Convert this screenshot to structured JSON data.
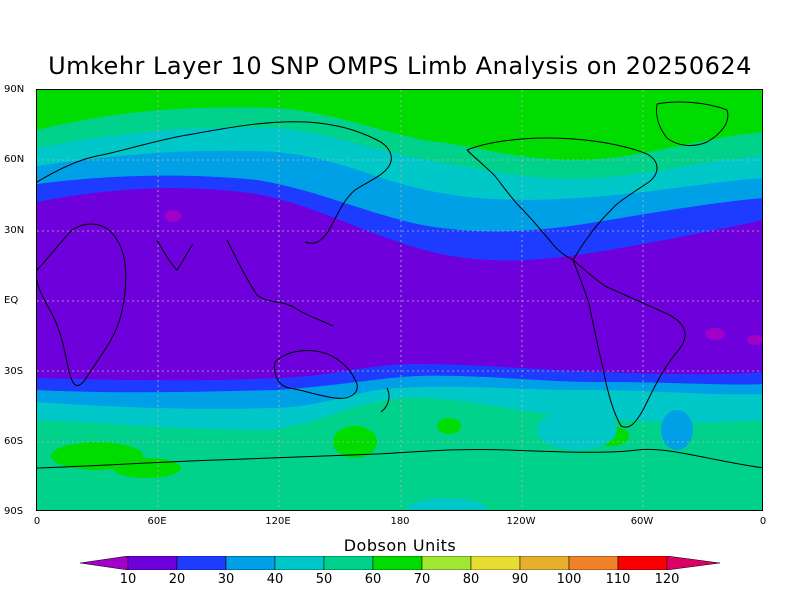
{
  "title": "Umkehr Layer 10 SNP OMPS Limb Analysis on 20250624",
  "lat_labels": [
    "90N",
    "60N",
    "30N",
    "EQ",
    "30S",
    "60S",
    "90S"
  ],
  "lon_labels": [
    "0",
    "60E",
    "120E",
    "180",
    "120W",
    "60W",
    "0"
  ],
  "colorbar": {
    "title": "Dobson Units",
    "ticks": [
      "10",
      "20",
      "30",
      "40",
      "50",
      "60",
      "70",
      "80",
      "90",
      "100",
      "110",
      "120"
    ],
    "colors": [
      "#a000c8",
      "#6e00dc",
      "#1e3cff",
      "#00a0e6",
      "#00c8c8",
      "#00d28c",
      "#00dc00",
      "#a0e632",
      "#e6dc32",
      "#e6af2d",
      "#f08228",
      "#fa0000",
      "#dc0064"
    ]
  },
  "colors": {
    "c20": "#6e00dc",
    "c30": "#1e3cff",
    "c40": "#00a0e6",
    "c50": "#00c8c8",
    "c60": "#00d28c",
    "c70": "#00dc00",
    "c10": "#a000c8",
    "coast": "#000000",
    "grid": "#b4b4b4"
  }
}
